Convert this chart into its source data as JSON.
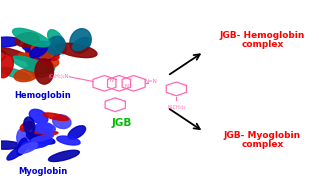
{
  "background_color": "#ffffff",
  "hemoglobin_label": "Hemoglobin",
  "myoglobin_label": "Myoglobin",
  "jgb_label": "JGB",
  "complex1_line1": "JGB- Hemoglobin",
  "complex1_line2": "complex",
  "complex2_line1": "JGB- Myoglobin",
  "complex2_line2": "complex",
  "label_color_blue": "#0000cc",
  "label_color_green": "#00bb00",
  "label_color_red": "#ff0000",
  "arrow_color": "#000000",
  "jgb_struct_color": "#ff69b4",
  "hemo_colors": [
    "#cc0000",
    "#0000cc",
    "#00aa88",
    "#8B0000",
    "#cc3300",
    "#006688"
  ],
  "myo_colors": [
    "#0000cc",
    "#3333ff",
    "#1a1aff",
    "#0000aa",
    "#cc0000",
    "#4444ff"
  ],
  "fig_width": 3.19,
  "fig_height": 1.89,
  "dpi": 100
}
